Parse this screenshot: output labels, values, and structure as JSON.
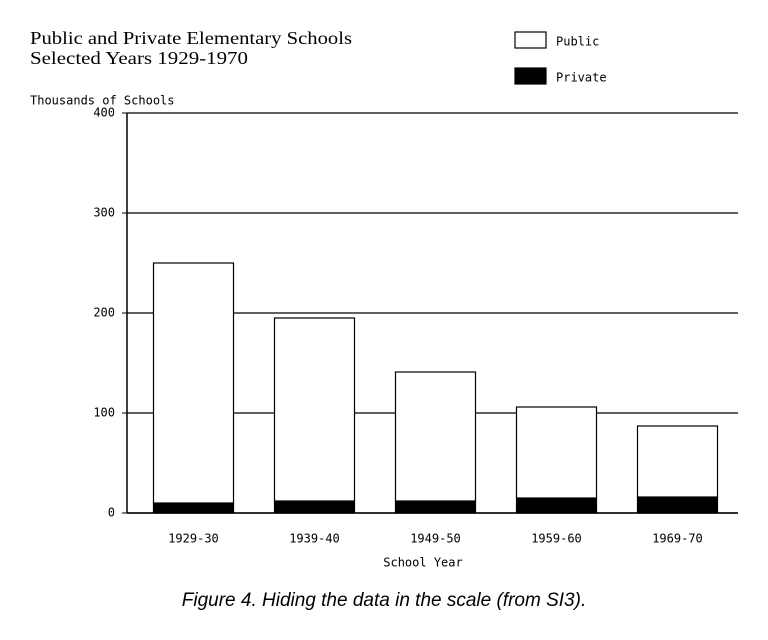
{
  "chart_data": {
    "type": "stacked_bar",
    "title": "Public and Private Elementary Schools",
    "subtitle": "Selected Years 1929-1970",
    "y_label": "Thousands of Schools",
    "x_label": "School Year",
    "caption": "Figure 4. Hiding the data in the scale (from SI3).",
    "categories": [
      "1929-30",
      "1939-40",
      "1949-50",
      "1959-60",
      "1969-70"
    ],
    "series": [
      {
        "name": "Public",
        "color": "#ffffff",
        "values": [
          240,
          183,
          129,
          91,
          71
        ]
      },
      {
        "name": "Private",
        "color": "#000000",
        "values": [
          10,
          12,
          12,
          15,
          16
        ]
      }
    ],
    "ylim": [
      0,
      400
    ],
    "yticks": [
      0,
      100,
      200,
      300,
      400
    ],
    "grid": true,
    "legend": "top-right"
  }
}
